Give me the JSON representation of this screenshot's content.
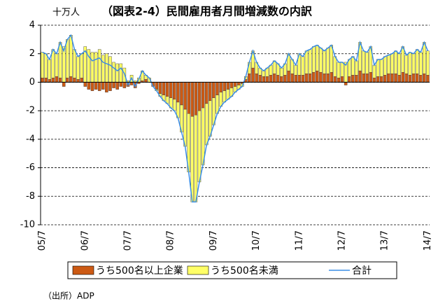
{
  "chart_data": {
    "type": "bar",
    "title": "（図表2-4）民間雇用者月間増減数の内訳",
    "y_unit": "十万人",
    "source": "（出所）ADP",
    "categories": [
      "05/7",
      null,
      null,
      null,
      null,
      null,
      null,
      null,
      null,
      null,
      null,
      null,
      "06/7",
      null,
      null,
      null,
      null,
      null,
      null,
      null,
      null,
      null,
      null,
      null,
      "07/7",
      null,
      null,
      null,
      null,
      null,
      null,
      null,
      null,
      null,
      null,
      null,
      "08/7",
      null,
      null,
      null,
      null,
      null,
      null,
      null,
      null,
      null,
      null,
      null,
      "09/7",
      null,
      null,
      null,
      null,
      null,
      null,
      null,
      null,
      null,
      null,
      null,
      "10/7",
      null,
      null,
      null,
      null,
      null,
      null,
      null,
      null,
      null,
      null,
      null,
      "11/7",
      null,
      null,
      null,
      null,
      null,
      null,
      null,
      null,
      null,
      null,
      null,
      "12/7",
      null,
      null,
      null,
      null,
      null,
      null,
      null,
      null,
      null,
      null,
      null,
      "13/7",
      null,
      null,
      null,
      null,
      null,
      null,
      null,
      null,
      null,
      null,
      null,
      "14/7"
    ],
    "series": [
      {
        "name": "うち500名以上企業",
        "color": "#cc5a14",
        "kind": "bar",
        "values": [
          0.3,
          0.3,
          0.2,
          0.3,
          0.4,
          0.3,
          -0.3,
          0.3,
          0.4,
          0.3,
          0.2,
          0.3,
          -0.3,
          -0.5,
          -0.6,
          -0.5,
          -0.6,
          -0.5,
          -0.7,
          -0.6,
          -0.4,
          -0.5,
          -0.3,
          -0.4,
          -0.3,
          -0.2,
          -0.4,
          -0.1,
          0.1,
          0.2,
          0.0,
          -0.3,
          -0.5,
          -0.8,
          -0.9,
          -1.0,
          -1.1,
          -1.2,
          -1.4,
          -1.6,
          -1.9,
          -2.2,
          -2.4,
          -2.3,
          -2.0,
          -1.8,
          -1.5,
          -1.3,
          -1.1,
          -0.9,
          -0.7,
          -0.6,
          -0.5,
          -0.4,
          -0.3,
          -0.2,
          -0.1,
          0.2,
          0.6,
          1.0,
          0.6,
          0.5,
          0.4,
          0.4,
          0.5,
          0.6,
          0.5,
          0.4,
          0.5,
          0.8,
          0.6,
          0.5,
          0.5,
          0.5,
          0.6,
          0.6,
          0.7,
          0.8,
          0.7,
          0.6,
          0.6,
          0.7,
          0.4,
          0.3,
          0.4,
          -0.2,
          0.4,
          0.5,
          0.5,
          0.8,
          0.6,
          0.6,
          0.7,
          0.3,
          0.4,
          0.4,
          0.5,
          0.6,
          0.6,
          0.6,
          0.5,
          0.7,
          0.6,
          0.5,
          0.6,
          0.6,
          0.5,
          0.6,
          0.5
        ]
      },
      {
        "name": "うち500名未満",
        "color": "#ffff66",
        "kind": "bar",
        "values": [
          1.8,
          1.7,
          1.4,
          2.0,
          1.6,
          2.5,
          2.5,
          2.7,
          2.9,
          2.0,
          1.6,
          1.7,
          2.5,
          2.3,
          2.1,
          2.1,
          2.3,
          1.9,
          2.0,
          1.8,
          1.4,
          1.3,
          1.3,
          1.0,
          0.1,
          0.5,
          0.1,
          0.3,
          0.7,
          0.3,
          0.3,
          0.0,
          -0.1,
          -0.2,
          -0.4,
          -0.5,
          -0.7,
          -0.8,
          -1.1,
          -1.9,
          -2.6,
          -4.1,
          -6.0,
          -6.1,
          -5.0,
          -4.0,
          -2.9,
          -2.5,
          -1.9,
          -1.3,
          -1.0,
          -0.8,
          -0.7,
          -0.6,
          -0.4,
          -0.3,
          -0.2,
          0.2,
          0.8,
          1.2,
          0.8,
          0.5,
          0.4,
          0.6,
          0.7,
          0.9,
          0.8,
          0.6,
          0.8,
          1.2,
          1.0,
          0.7,
          1.5,
          1.3,
          1.6,
          1.7,
          1.8,
          1.8,
          1.7,
          1.6,
          1.8,
          1.9,
          1.4,
          1.1,
          1.0,
          1.4,
          1.2,
          1.3,
          1.0,
          2.0,
          1.6,
          1.5,
          1.8,
          0.9,
          1.2,
          1.2,
          1.3,
          1.3,
          1.4,
          1.6,
          1.5,
          1.8,
          1.3,
          1.6,
          1.4,
          1.7,
          1.6,
          2.2,
          1.7
        ]
      },
      {
        "name": "合計",
        "color": "#3a8ee6",
        "kind": "line",
        "values": [
          2.1,
          2.0,
          1.6,
          2.3,
          2.0,
          2.8,
          2.2,
          3.0,
          3.3,
          2.3,
          1.8,
          2.0,
          2.2,
          1.8,
          1.5,
          1.6,
          1.7,
          1.4,
          1.3,
          1.2,
          1.0,
          0.8,
          1.0,
          0.6,
          -0.2,
          0.3,
          -0.3,
          0.2,
          0.8,
          0.5,
          0.3,
          -0.3,
          -0.6,
          -1.0,
          -1.3,
          -1.5,
          -1.8,
          -2.0,
          -2.5,
          -3.5,
          -4.5,
          -6.3,
          -8.4,
          -8.4,
          -7.0,
          -5.8,
          -4.4,
          -3.8,
          -3.0,
          -2.2,
          -1.7,
          -1.4,
          -1.2,
          -1.0,
          -0.7,
          -0.5,
          -0.3,
          0.4,
          1.4,
          2.2,
          1.4,
          1.0,
          0.8,
          1.0,
          1.2,
          1.5,
          1.3,
          1.0,
          1.3,
          2.0,
          1.6,
          1.2,
          2.0,
          1.8,
          2.2,
          2.3,
          2.5,
          2.6,
          2.4,
          2.2,
          2.4,
          2.6,
          1.8,
          1.4,
          1.4,
          1.2,
          1.6,
          1.8,
          1.5,
          2.8,
          2.2,
          2.1,
          2.5,
          1.2,
          1.6,
          1.6,
          1.8,
          1.9,
          2.0,
          2.2,
          2.0,
          2.5,
          1.9,
          2.1,
          2.0,
          2.3,
          2.1,
          2.8,
          2.2
        ]
      }
    ],
    "ylim": [
      -10,
      4
    ],
    "yticks": [
      4,
      2,
      0,
      -2,
      -4,
      -6,
      -8,
      -10
    ],
    "grid": true
  }
}
